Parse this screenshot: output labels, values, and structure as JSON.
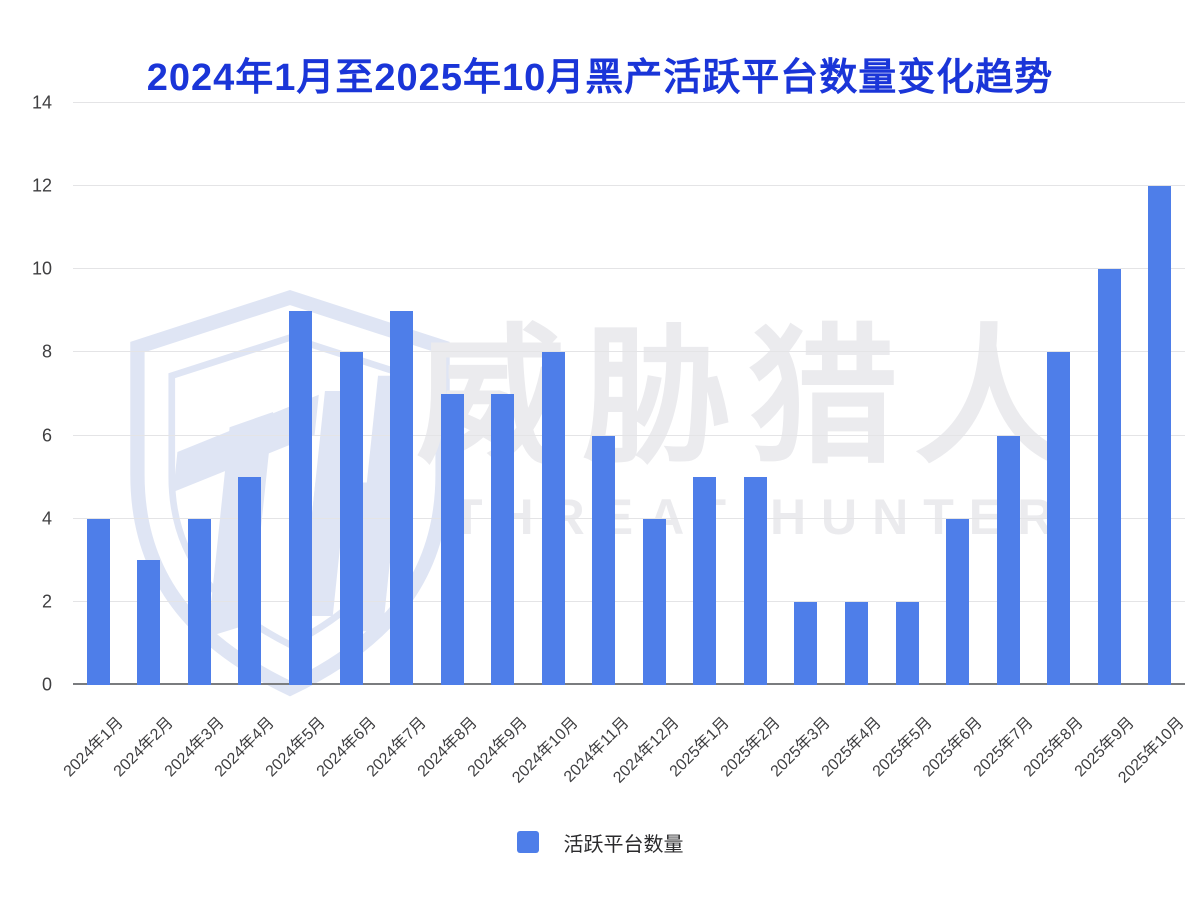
{
  "title": "2024年1月至2025年10月黑产活跃平台数量变化趋势",
  "legend": {
    "label": "活跃平台数量"
  },
  "watermark": {
    "cjk_text": "威胁猎人",
    "latin_text": "THREAT HUNTER",
    "shield_icon": "shield-th-monogram"
  },
  "colors": {
    "title": "#1a35d8",
    "bar": "#4e7ee9",
    "gridline": "#e4e4e6",
    "axis_line": "#7a7c7f",
    "tick_label": "#3f3f41",
    "watermark_shield": "#dfe5f4",
    "watermark_text": "#ebebee",
    "background": "#ffffff"
  },
  "chart_data": {
    "type": "bar",
    "title": "2024年1月至2025年10月黑产活跃平台数量变化趋势",
    "series_name": "活跃平台数量",
    "categories": [
      "2024年1月",
      "2024年2月",
      "2024年3月",
      "2024年4月",
      "2024年5月",
      "2024年6月",
      "2024年7月",
      "2024年8月",
      "2024年9月",
      "2024年10月",
      "2024年11月",
      "2024年12月",
      "2025年1月",
      "2025年2月",
      "2025年3月",
      "2025年4月",
      "2025年5月",
      "2025年6月",
      "2025年7月",
      "2025年8月",
      "2025年9月",
      "2025年10月"
    ],
    "values": [
      4,
      3,
      4,
      5,
      9,
      8,
      9,
      7,
      7,
      8,
      6,
      4,
      5,
      5,
      2,
      2,
      2,
      4,
      6,
      8,
      10,
      12
    ],
    "xlabel": "",
    "ylabel": "",
    "ylim": [
      0,
      14
    ],
    "yticks": [
      0,
      2,
      4,
      6,
      8,
      10,
      12,
      14
    ],
    "grid": true,
    "x_tick_rotation": -45,
    "legend_position": "bottom"
  }
}
